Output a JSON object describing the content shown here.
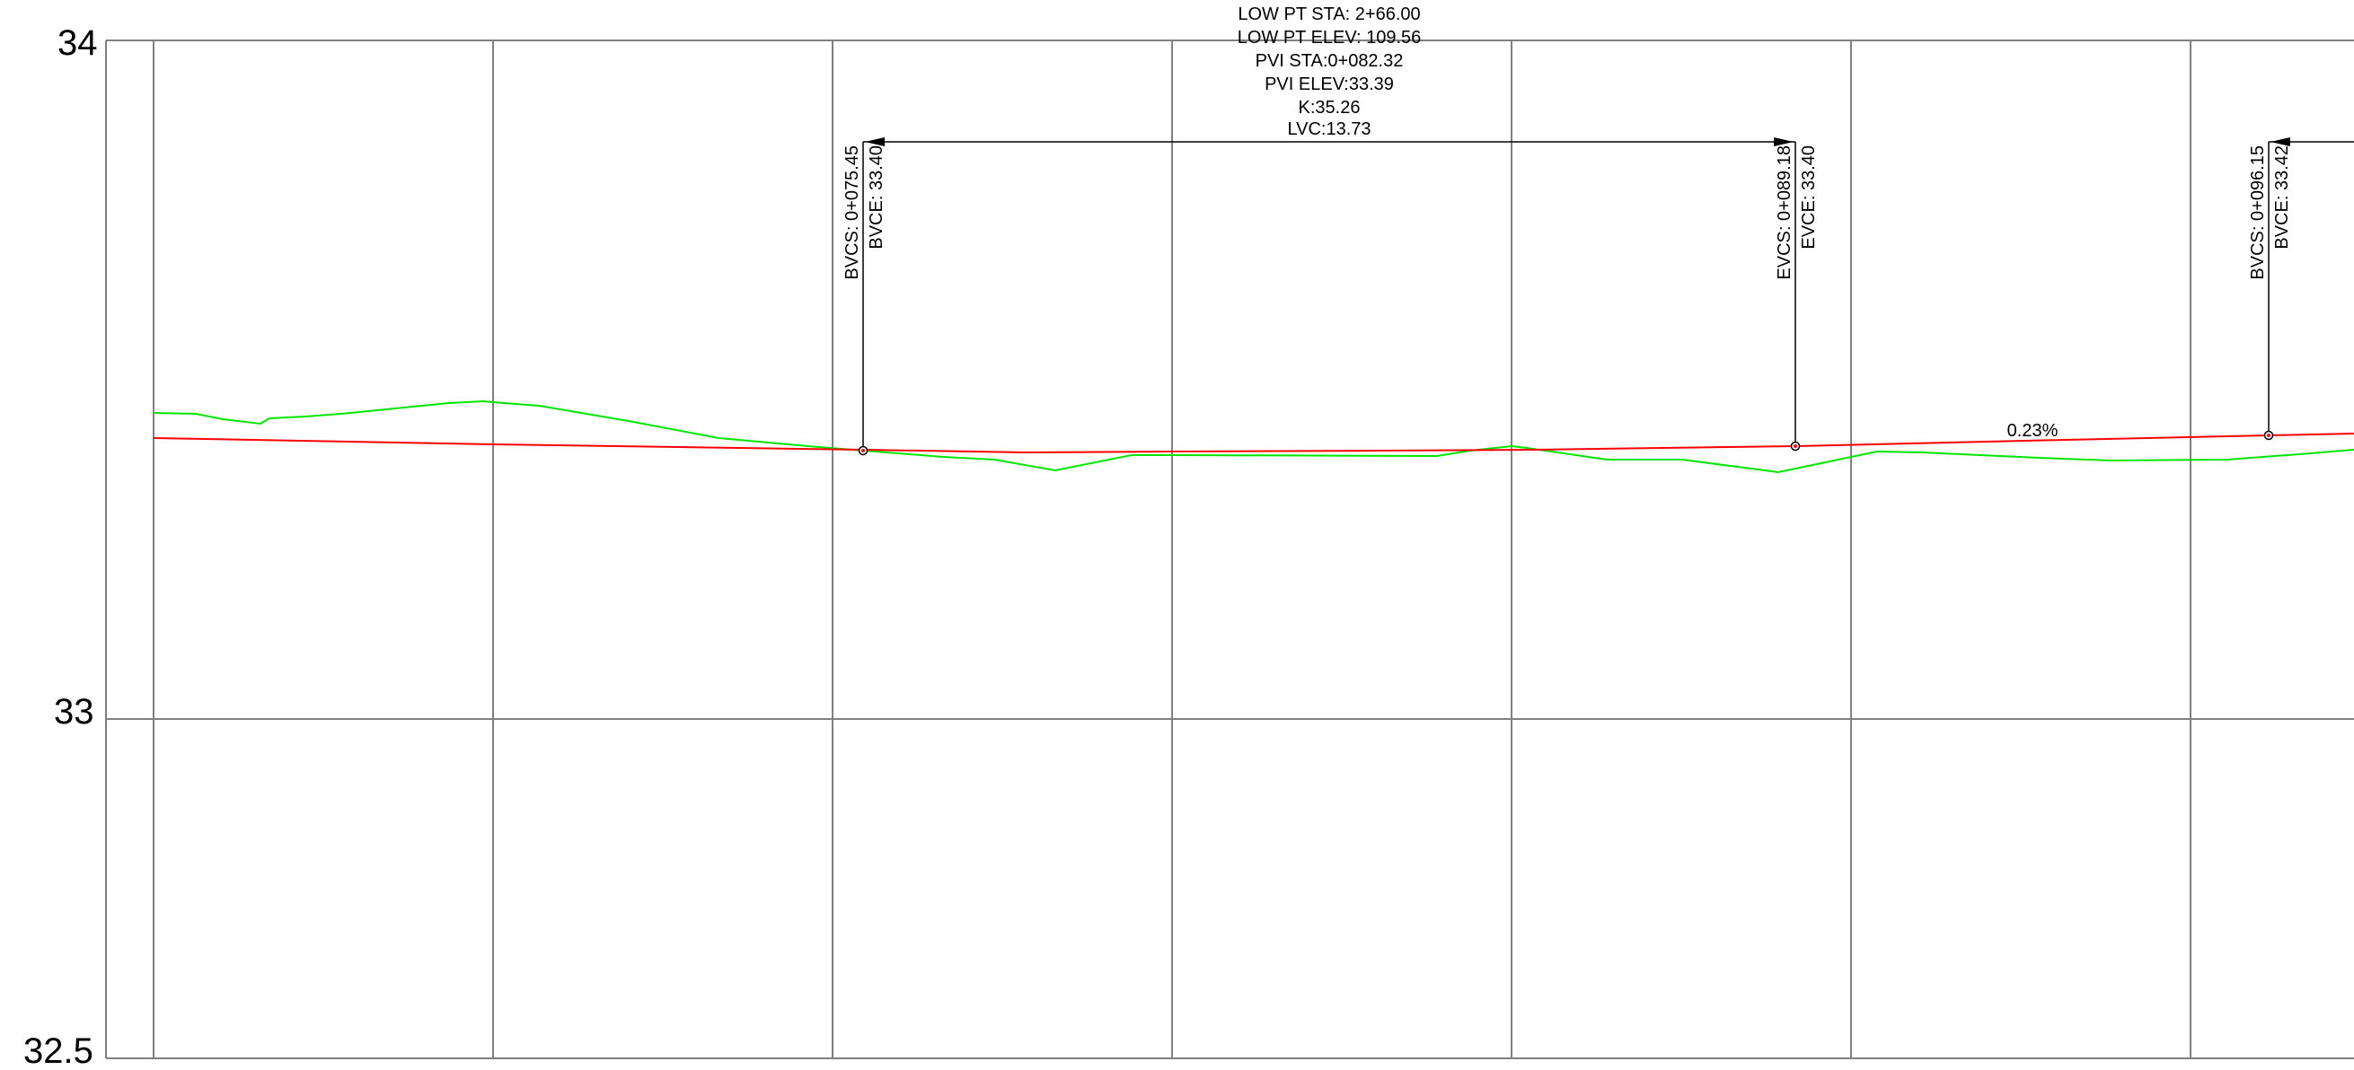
{
  "y_axis": {
    "tick_labels": [
      "34",
      "33",
      "32.5"
    ]
  },
  "low_point_block": [
    "LOW PT STA: 2+66.00",
    "LOW PT ELEV: 109.56",
    "PVI STA:0+082.32",
    "PVI ELEV:33.39",
    "K:35.26",
    "LVC:13.73"
  ],
  "curve_points": [
    {
      "sta": "BVCS: 0+075.45",
      "elev": "BVCE: 33.40"
    },
    {
      "sta": "EVCS: 0+089.18",
      "elev": "EVCE: 33.40"
    },
    {
      "sta": "BVCS: 0+096.15",
      "elev": "BVCE: 33.42"
    }
  ],
  "grade_label": "0.23%",
  "colors": {
    "grid": "#808080",
    "design_profile": "#ff0000",
    "existing_ground": "#00e600",
    "annotation": "#000000"
  }
}
